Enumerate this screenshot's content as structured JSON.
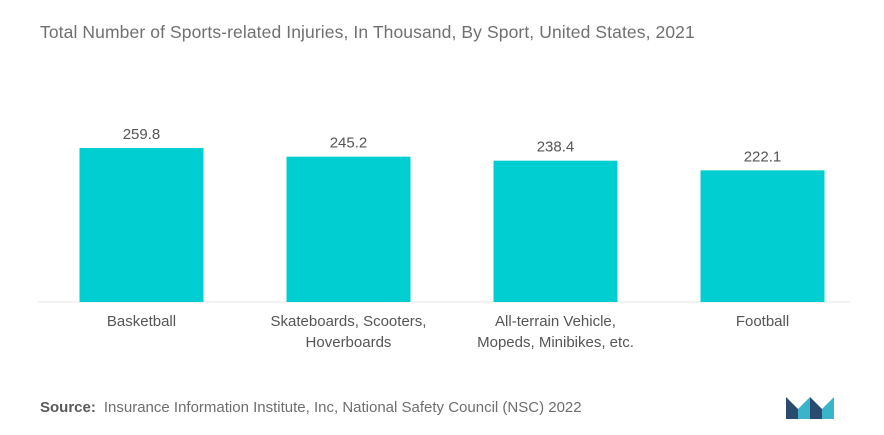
{
  "title": "Total Number of Sports-related Injuries, In Thousand, By Sport, United States, 2021",
  "source_label": "Source:",
  "source_text": "Insurance Information Institute, Inc, National Safety Council (NSC) 2022",
  "colors": {
    "bar": "#00CED1",
    "text": "#555555",
    "logo_dark": "#2a4a6e",
    "logo_light": "#3ab4c8"
  },
  "chart_data": {
    "type": "bar",
    "categories": [
      [
        "Basketball"
      ],
      [
        "Skateboards, Scooters,",
        "Hoverboards"
      ],
      [
        "All-terrain Vehicle,",
        "Mopeds, Minibikes, etc."
      ],
      [
        "Football"
      ]
    ],
    "values": [
      259.8,
      245.2,
      238.4,
      222.1
    ],
    "data_labels": [
      "259.8",
      "245.2",
      "238.4",
      "222.1"
    ],
    "ylim": [
      0,
      259.8
    ],
    "grid": false,
    "xlabel": "",
    "ylabel": ""
  }
}
